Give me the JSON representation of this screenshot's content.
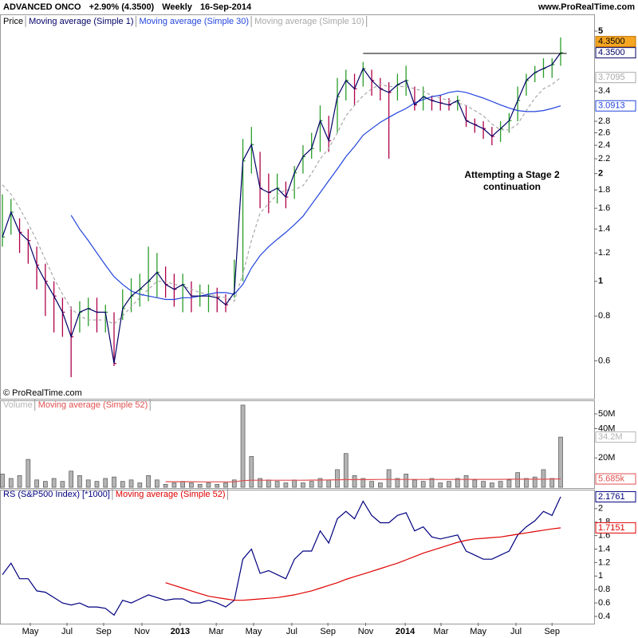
{
  "header": {
    "title": "ADVANCED ONCO",
    "change": "+2.90% (4.3500)",
    "period": "Weekly",
    "date": "16-Sep-2014",
    "site": "www.ProRealTime.com"
  },
  "chart_data": [
    {
      "type": "ohlc",
      "log_scale": true,
      "categories": [
        null,
        null,
        null,
        null,
        null,
        null,
        null,
        null,
        null,
        null,
        null,
        null,
        null,
        null,
        null,
        null,
        null,
        null,
        null,
        null,
        null,
        null,
        null,
        null,
        null,
        null,
        null,
        null,
        null,
        null,
        null,
        null,
        null,
        null,
        null,
        null,
        null,
        null,
        null,
        null,
        null,
        null,
        null,
        null,
        null,
        null,
        null,
        null,
        null,
        null,
        null,
        null,
        null,
        null,
        null,
        null,
        null,
        null,
        null,
        null,
        null,
        null,
        null,
        null,
        null,
        null
      ],
      "price": {
        "name": "Price",
        "up_color": "#2a9d2a",
        "down_color": "#b0004a",
        "last_label": "4.3500",
        "close": [
          1.33,
          1.56,
          1.37,
          1.3,
          1.11,
          1.0,
          0.91,
          0.82,
          0.7,
          0.82,
          0.84,
          0.82,
          0.82,
          0.59,
          0.84,
          0.91,
          0.95,
          1.0,
          1.06,
          0.98,
          0.95,
          0.98,
          0.91,
          0.91,
          0.91,
          0.9,
          0.86,
          0.93,
          2.17,
          2.41,
          1.82,
          1.77,
          1.82,
          1.72,
          2.01,
          2.23,
          2.35,
          2.81,
          2.47,
          3.28,
          3.64,
          3.45,
          3.93,
          3.64,
          3.45,
          3.37,
          3.54,
          3.64,
          3.11,
          3.28,
          3.2,
          3.15,
          3.11,
          3.2,
          2.81,
          2.74,
          2.67,
          2.54,
          2.67,
          2.81,
          3.2,
          3.64,
          3.83,
          3.93,
          4.03,
          4.35
        ],
        "high": [
          1.75,
          1.7,
          1.5,
          1.4,
          1.25,
          1.12,
          1.0,
          0.9,
          0.85,
          0.88,
          0.9,
          0.9,
          0.86,
          0.82,
          0.95,
          1.02,
          1.05,
          1.25,
          1.2,
          1.1,
          1.05,
          1.05,
          1.0,
          0.98,
          0.98,
          0.96,
          0.92,
          1.15,
          2.5,
          2.7,
          2.3,
          2.0,
          2.0,
          1.9,
          2.1,
          2.4,
          2.6,
          3.1,
          2.9,
          3.7,
          3.9,
          3.8,
          4.1,
          3.9,
          3.7,
          3.6,
          3.8,
          4.0,
          3.5,
          3.5,
          3.3,
          3.3,
          3.25,
          3.3,
          3.1,
          2.85,
          2.8,
          2.7,
          2.8,
          2.95,
          3.5,
          3.8,
          4.0,
          4.2,
          4.2,
          4.8
        ],
        "low": [
          1.25,
          1.35,
          1.2,
          1.12,
          0.95,
          0.8,
          0.72,
          0.7,
          0.54,
          0.72,
          0.75,
          0.72,
          0.72,
          0.58,
          0.78,
          0.82,
          0.85,
          0.88,
          0.9,
          0.9,
          0.85,
          0.82,
          0.82,
          0.85,
          0.82,
          0.82,
          0.82,
          0.9,
          1.0,
          2.0,
          1.6,
          1.55,
          1.65,
          1.6,
          1.7,
          2.0,
          2.2,
          2.3,
          2.3,
          2.6,
          3.2,
          3.1,
          3.5,
          3.3,
          3.2,
          2.2,
          3.2,
          3.3,
          3.0,
          3.0,
          3.0,
          3.0,
          3.0,
          3.0,
          2.7,
          2.6,
          2.5,
          2.4,
          2.45,
          2.6,
          2.8,
          3.3,
          3.6,
          3.7,
          3.7,
          4.0
        ]
      },
      "series": [
        {
          "name": "Moving average (Simple 1)",
          "color": "#000066",
          "style": "solid",
          "last_label": "4.3500",
          "values": [
            1.33,
            1.56,
            1.37,
            1.3,
            1.11,
            1.0,
            0.91,
            0.82,
            0.7,
            0.82,
            0.84,
            0.82,
            0.82,
            0.59,
            0.84,
            0.91,
            0.95,
            1.0,
            1.06,
            0.98,
            0.95,
            0.98,
            0.91,
            0.91,
            0.91,
            0.9,
            0.86,
            0.93,
            2.17,
            2.41,
            1.82,
            1.77,
            1.82,
            1.72,
            2.01,
            2.23,
            2.35,
            2.81,
            2.47,
            3.28,
            3.64,
            3.45,
            3.93,
            3.64,
            3.45,
            3.37,
            3.54,
            3.64,
            3.11,
            3.28,
            3.2,
            3.15,
            3.11,
            3.2,
            2.81,
            2.74,
            2.67,
            2.54,
            2.67,
            2.81,
            3.2,
            3.64,
            3.83,
            3.93,
            4.03,
            4.35
          ]
        },
        {
          "name": "Moving average (Simple 30)",
          "color": "#2244dd",
          "style": "solid",
          "last_label": "3.0913",
          "values": [
            null,
            null,
            null,
            null,
            null,
            null,
            null,
            null,
            1.53,
            1.4,
            1.3,
            1.2,
            1.11,
            1.03,
            0.98,
            0.94,
            0.92,
            0.91,
            0.9,
            0.89,
            0.89,
            0.9,
            0.9,
            0.91,
            0.92,
            0.93,
            0.93,
            0.92,
            0.98,
            1.09,
            1.18,
            1.25,
            1.31,
            1.37,
            1.44,
            1.52,
            1.64,
            1.77,
            1.91,
            2.06,
            2.23,
            2.38,
            2.56,
            2.67,
            2.78,
            2.87,
            2.96,
            3.04,
            3.15,
            3.22,
            3.28,
            3.31,
            3.37,
            3.4,
            3.37,
            3.31,
            3.25,
            3.18,
            3.11,
            3.05,
            3.0,
            2.98,
            2.98,
            3.0,
            3.04,
            3.0913
          ]
        },
        {
          "name": "Moving average (Simple 10)",
          "color": "#a8a8a8",
          "style": "dashed",
          "last_label": "3.7095",
          "values": [
            1.86,
            1.75,
            1.6,
            1.45,
            1.3,
            1.15,
            1.02,
            0.92,
            0.84,
            0.8,
            0.78,
            0.78,
            0.78,
            0.76,
            0.8,
            0.85,
            0.9,
            0.95,
            1.0,
            1.0,
            0.98,
            0.97,
            0.95,
            0.93,
            0.92,
            0.91,
            0.9,
            0.88,
            1.05,
            1.3,
            1.55,
            1.65,
            1.75,
            1.8,
            1.8,
            1.85,
            2.0,
            2.2,
            2.35,
            2.6,
            2.9,
            3.1,
            3.3,
            3.45,
            3.55,
            3.5,
            3.5,
            3.5,
            3.45,
            3.4,
            3.3,
            3.25,
            3.2,
            3.15,
            3.1,
            3.0,
            2.9,
            2.75,
            2.65,
            2.65,
            2.75,
            3.0,
            3.25,
            3.45,
            3.55,
            3.7095
          ]
        }
      ],
      "resistance": {
        "value": 4.33,
        "x": [
          42,
          65.7
        ],
        "color": "#000000"
      },
      "annotation": "Attempting a Stage 2 continuation",
      "watermark": "© ProRealTime.com",
      "ylim": [
        0.47,
        5.54
      ],
      "yticks": [
        0.6,
        0.8,
        1,
        1.2,
        1.4,
        1.6,
        1.8,
        2,
        2.2,
        2.4,
        2.6,
        2.8,
        3.4,
        5
      ]
    },
    {
      "type": "bar",
      "series": [
        {
          "name": "Volume",
          "color": "#b4b4b4",
          "last_label": "34.2M",
          "values": [
            9,
            6,
            8,
            19,
            5,
            4,
            6,
            4,
            11,
            8,
            5,
            4,
            6,
            7,
            4,
            5,
            3,
            8,
            5,
            2,
            3,
            4,
            3,
            2,
            3,
            2,
            3,
            5,
            56,
            21,
            6,
            5,
            4,
            3,
            5,
            3,
            4,
            6,
            5,
            12,
            23,
            8,
            6,
            4,
            3,
            12,
            6,
            9,
            5,
            4,
            6,
            3,
            4,
            6,
            8,
            5,
            4,
            3,
            4,
            5,
            10,
            6,
            7,
            12,
            6,
            34.2
          ]
        },
        {
          "name": "Moving average (Simple 52)",
          "color": "#e05050",
          "last_label": "5.685k",
          "values": [
            null,
            null,
            null,
            null,
            null,
            null,
            null,
            null,
            null,
            null,
            null,
            null,
            null,
            null,
            null,
            null,
            null,
            null,
            null,
            3.8,
            3.8,
            3.8,
            3.8,
            3.7,
            3.7,
            3.7,
            3.7,
            3.7,
            4.5,
            4.8,
            4.8,
            4.8,
            4.8,
            4.8,
            4.8,
            4.8,
            4.9,
            4.9,
            5.0,
            5.1,
            5.2,
            5.2,
            5.2,
            5.2,
            5.3,
            5.3,
            5.3,
            5.3,
            5.3,
            5.3,
            5.3,
            5.3,
            5.3,
            5.3,
            5.4,
            5.4,
            5.4,
            5.4,
            5.4,
            5.5,
            5.5,
            5.5,
            5.5,
            5.5,
            5.6,
            5.685
          ]
        }
      ],
      "ylim": [
        0,
        58.7
      ],
      "yticks": [
        {
          "value": 20,
          "label": "20M"
        },
        {
          "value": 40,
          "label": "40M"
        },
        {
          "value": 50,
          "label": "50M"
        }
      ]
    },
    {
      "type": "line",
      "series": [
        {
          "name": "RS (S&P500 Index) [*1000]",
          "color": "#000080",
          "last_label": "2.1761",
          "values": [
            1.02,
            1.19,
            0.96,
            0.96,
            0.78,
            0.76,
            0.68,
            0.6,
            0.57,
            0.6,
            0.54,
            0.54,
            0.52,
            0.42,
            0.64,
            0.6,
            0.66,
            0.72,
            0.68,
            0.64,
            0.66,
            0.66,
            0.6,
            0.6,
            0.64,
            0.6,
            0.54,
            0.64,
            1.25,
            1.4,
            1.04,
            1.08,
            1.02,
            0.96,
            1.25,
            1.37,
            1.37,
            1.67,
            1.49,
            1.85,
            1.96,
            1.85,
            2.11,
            1.9,
            1.79,
            1.79,
            1.9,
            1.94,
            1.67,
            1.73,
            1.58,
            1.55,
            1.58,
            1.61,
            1.37,
            1.31,
            1.25,
            1.25,
            1.31,
            1.37,
            1.61,
            1.73,
            1.82,
            1.96,
            1.9,
            2.1761
          ]
        },
        {
          "name": "Moving average (Simple 52)",
          "color": "#e00000",
          "last_label": "1.7151",
          "values": [
            null,
            null,
            null,
            null,
            null,
            null,
            null,
            null,
            null,
            null,
            null,
            null,
            null,
            null,
            null,
            null,
            null,
            null,
            null,
            0.9,
            0.86,
            0.82,
            0.78,
            0.74,
            0.7,
            0.68,
            0.66,
            0.64,
            0.64,
            0.65,
            0.66,
            0.67,
            0.68,
            0.7,
            0.72,
            0.75,
            0.78,
            0.82,
            0.86,
            0.9,
            0.95,
            0.99,
            1.03,
            1.07,
            1.11,
            1.15,
            1.19,
            1.24,
            1.29,
            1.34,
            1.38,
            1.42,
            1.46,
            1.5,
            1.53,
            1.55,
            1.56,
            1.57,
            1.58,
            1.6,
            1.62,
            1.64,
            1.66,
            1.68,
            1.7,
            1.7151
          ]
        }
      ],
      "ylim": [
        0.305,
        2.27
      ],
      "yticks": [
        0.4,
        0.6,
        0.8,
        1,
        1.2,
        1.4,
        1.6,
        1.8,
        2
      ],
      "xlim": [
        -0.28,
        68.9
      ],
      "xticks": [
        {
          "value": 3.25,
          "label": "May"
        },
        {
          "value": 7.52,
          "label": "Jul"
        },
        {
          "value": 11.79,
          "label": "Sep"
        },
        {
          "value": 16.25,
          "label": "Nov"
        },
        {
          "value": 20.7,
          "label": "2013"
        },
        {
          "value": 24.9,
          "label": "Mar"
        },
        {
          "value": 29.25,
          "label": "May"
        },
        {
          "value": 33.7,
          "label": "Jul"
        },
        {
          "value": 37.9,
          "label": "Sep"
        },
        {
          "value": 42.3,
          "label": "Nov"
        },
        {
          "value": 46.9,
          "label": "2014"
        },
        {
          "value": 51.07,
          "label": "Mar"
        },
        {
          "value": 55.4,
          "label": "May"
        },
        {
          "value": 59.8,
          "label": "Jul"
        },
        {
          "value": 64.0,
          "label": "Sep"
        }
      ]
    }
  ]
}
